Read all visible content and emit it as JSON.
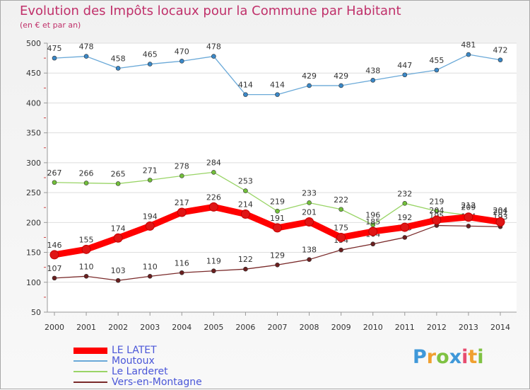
{
  "title": "Evolution des Impôts locaux pour la Commune par Habitant",
  "subtitle": "(en € et par an)",
  "logo_text": "Proxiti",
  "chart_data": {
    "type": "line",
    "title": "Evolution des Impôts locaux pour la Commune par Habitant",
    "subtitle": "(en € et par an)",
    "x": [
      "2000",
      "2001",
      "2002",
      "2003",
      "2004",
      "2005",
      "2006",
      "2007",
      "2008",
      "2009",
      "2010",
      "2011",
      "2012",
      "2013",
      "2014"
    ],
    "ylim": [
      50,
      500
    ],
    "yticks": [
      50,
      100,
      150,
      200,
      250,
      300,
      350,
      400,
      450,
      500
    ],
    "grid": "horizontal",
    "legend_position": "bottom-left",
    "series": [
      {
        "name": "LE LATET",
        "color": "#ff0000",
        "marker": "#e01515",
        "values": [
          146,
          155,
          174,
          194,
          217,
          226,
          214,
          191,
          201,
          175,
          185,
          192,
          204,
          209,
          201
        ],
        "labels": [
          "146",
          "155",
          "174",
          "194",
          "217",
          "226",
          "214",
          "191",
          "201",
          "175",
          "185",
          "192",
          "204",
          "209",
          "201"
        ]
      },
      {
        "name": "Moutoux",
        "color": "#6aa9d8",
        "marker": "#3a88c8",
        "values": [
          475,
          478,
          458,
          465,
          470,
          478,
          414,
          414,
          429,
          429,
          438,
          447,
          455,
          481,
          472
        ],
        "labels": [
          "475",
          "478",
          "458",
          "465",
          "470",
          "478",
          "414",
          "414",
          "429",
          "429",
          "438",
          "447",
          "455",
          "481",
          "472"
        ]
      },
      {
        "name": "Le Larderet",
        "color": "#99d466",
        "marker": "#72bf3a",
        "values": [
          267,
          266,
          265,
          271,
          278,
          284,
          253,
          219,
          233,
          222,
          196,
          232,
          219,
          212,
          204
        ],
        "labels": [
          "267",
          "266",
          "265",
          "271",
          "278",
          "284",
          "253",
          "219",
          "233",
          "222",
          "196",
          "232",
          "219",
          "212",
          "204"
        ]
      },
      {
        "name": "Vers-en-Montagne",
        "color": "#7a2a2a",
        "marker": "#6a1f1f",
        "values": [
          107,
          110,
          103,
          110,
          116,
          119,
          122,
          129,
          138,
          154,
          164,
          175,
          195,
          194,
          193
        ],
        "labels": [
          "107",
          "110",
          "103",
          "110",
          "116",
          "119",
          "122",
          "129",
          "138",
          "154",
          "164",
          "175",
          "195",
          "194",
          "193"
        ]
      }
    ]
  }
}
